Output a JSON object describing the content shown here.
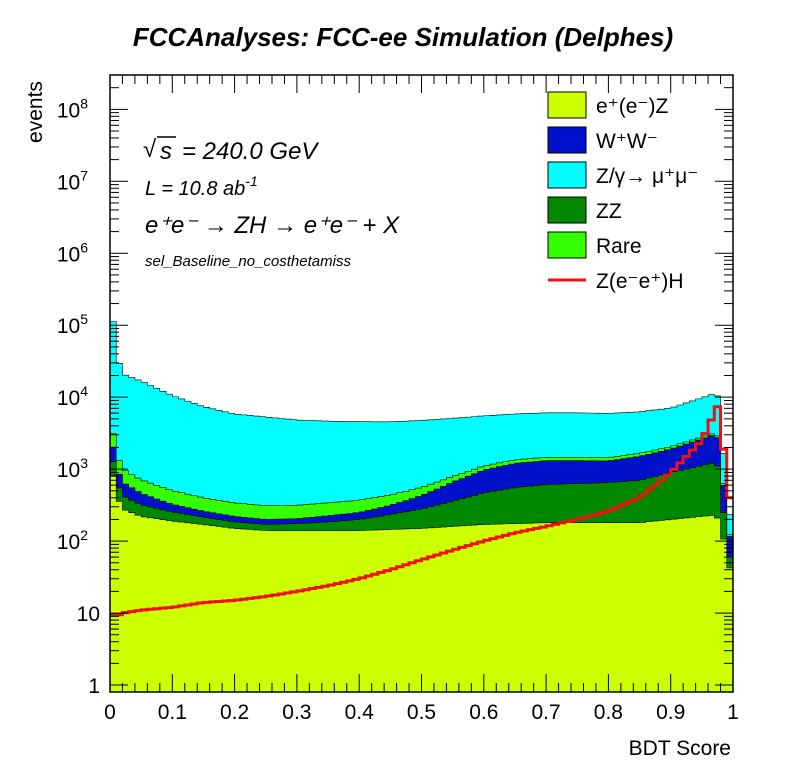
{
  "chart_data": {
    "type": "area",
    "title": "FCCAnalyses: FCC-ee Simulation (Delphes)",
    "xlabel": "BDT Score",
    "ylabel": "events",
    "xlim": [
      0,
      1
    ],
    "ylim": [
      0.8,
      300000000
    ],
    "yscale": "log",
    "stacked": true,
    "x_ticks": [
      "0",
      "0.1",
      "0.2",
      "0.3",
      "0.4",
      "0.5",
      "0.6",
      "0.7",
      "0.8",
      "0.9",
      "1"
    ],
    "y_ticks": [
      {
        "value": 1,
        "label": "1"
      },
      {
        "value": 10,
        "label": "10"
      },
      {
        "value": 100,
        "label": "10",
        "sup": "2"
      },
      {
        "value": 1000,
        "label": "10",
        "sup": "3"
      },
      {
        "value": 10000,
        "label": "10",
        "sup": "4"
      },
      {
        "value": 100000,
        "label": "10",
        "sup": "5"
      },
      {
        "value": 1000000,
        "label": "10",
        "sup": "6"
      },
      {
        "value": 10000000,
        "label": "10",
        "sup": "7"
      },
      {
        "value": 100000000,
        "label": "10",
        "sup": "8"
      }
    ],
    "annotations": {
      "sqrt_s": "= 240.0 GeV",
      "lumi": "L = 10.8 ab",
      "lumi_sup": "-1",
      "process": "e⁺e⁻ → ZH → e⁺e⁻ + X",
      "selection": "sel_Baseline_no_costhetamiss"
    },
    "legend_position": "top-right",
    "x": [
      0.0,
      0.01,
      0.02,
      0.05,
      0.1,
      0.15,
      0.2,
      0.25,
      0.3,
      0.35,
      0.4,
      0.45,
      0.5,
      0.55,
      0.6,
      0.65,
      0.7,
      0.75,
      0.8,
      0.85,
      0.9,
      0.95,
      0.97,
      0.98,
      0.99,
      1.0
    ],
    "series": [
      {
        "name": "e⁺(e⁻)Z",
        "color": "#ccff00",
        "values": [
          1500,
          450,
          280,
          220,
          190,
          170,
          150,
          140,
          140,
          140,
          140,
          145,
          150,
          160,
          170,
          175,
          180,
          180,
          180,
          180,
          200,
          220,
          230,
          190,
          60,
          30
        ]
      },
      {
        "name": "W⁺W⁻",
        "color": "#0011cc",
        "values": [
          1400,
          400,
          230,
          140,
          70,
          45,
          35,
          30,
          30,
          40,
          50,
          80,
          150,
          300,
          500,
          650,
          700,
          680,
          650,
          800,
          1000,
          1500,
          1800,
          1500,
          80,
          40
        ]
      },
      {
        "name": "Z/γ→ μ⁺μ⁻",
        "color": "#00ffff",
        "values": [
          300000,
          40000,
          20000,
          16000,
          10000,
          7000,
          5500,
          5000,
          4500,
          4300,
          4200,
          4100,
          4200,
          4300,
          4400,
          4500,
          4600,
          4600,
          4500,
          4600,
          5000,
          7000,
          8000,
          7000,
          150,
          80
        ]
      },
      {
        "name": "ZZ",
        "color": "#008800",
        "values": [
          800,
          250,
          150,
          100,
          65,
          45,
          35,
          30,
          35,
          45,
          60,
          90,
          130,
          200,
          300,
          380,
          430,
          450,
          470,
          520,
          700,
          900,
          1000,
          800,
          25,
          12
        ]
      },
      {
        "name": "Rare",
        "color": "#33ff00",
        "values": [
          2000,
          600,
          350,
          250,
          180,
          140,
          120,
          110,
          110,
          115,
          120,
          125,
          130,
          135,
          140,
          145,
          150,
          150,
          150,
          155,
          160,
          170,
          175,
          150,
          10,
          5
        ]
      }
    ],
    "signal": {
      "name": "Z(e⁻e⁺)H",
      "color": "#ee1111",
      "values": [
        10,
        9,
        10,
        11,
        12,
        14,
        15,
        17,
        20,
        24,
        30,
        40,
        55,
        75,
        100,
        130,
        160,
        200,
        260,
        400,
        900,
        2500,
        6000,
        9000,
        400,
        400
      ]
    }
  }
}
